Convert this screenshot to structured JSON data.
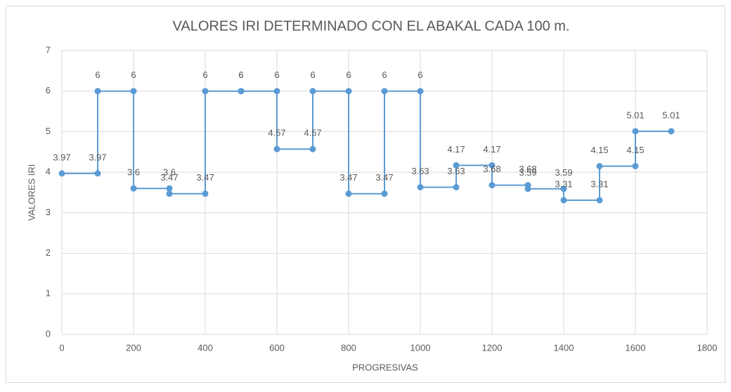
{
  "chart_data": {
    "type": "line",
    "title": "VALORES IRI DETERMINADO CON EL ABAKAL CADA 100 m.",
    "x_label": "PROGRESIVAS",
    "y_label": "VALORES IRI",
    "x": [
      0,
      100,
      100,
      200,
      200,
      300,
      300,
      400,
      400,
      500,
      500,
      600,
      600,
      700,
      700,
      800,
      800,
      900,
      900,
      1000,
      1000,
      1100,
      1100,
      1200,
      1200,
      1300,
      1300,
      1400,
      1400,
      1500,
      1500,
      1600,
      1600,
      1700
    ],
    "values": [
      3.97,
      3.97,
      6,
      6,
      3.6,
      3.6,
      3.47,
      3.47,
      6,
      6,
      6,
      6,
      4.57,
      4.57,
      6,
      6,
      3.47,
      3.47,
      6,
      6,
      3.63,
      3.63,
      4.17,
      4.17,
      3.68,
      3.68,
      3.59,
      3.59,
      3.31,
      3.31,
      4.15,
      4.15,
      5.01,
      5.01
    ],
    "color": "#5b9bd5",
    "xlim": [
      0,
      1800
    ],
    "xticks": [
      0,
      200,
      400,
      600,
      800,
      1000,
      1200,
      1400,
      1600,
      1800
    ],
    "ylim": [
      0,
      7
    ],
    "yticks": [
      0,
      1,
      2,
      3,
      4,
      5,
      6,
      7
    ],
    "grid": true,
    "data_labels": true
  }
}
